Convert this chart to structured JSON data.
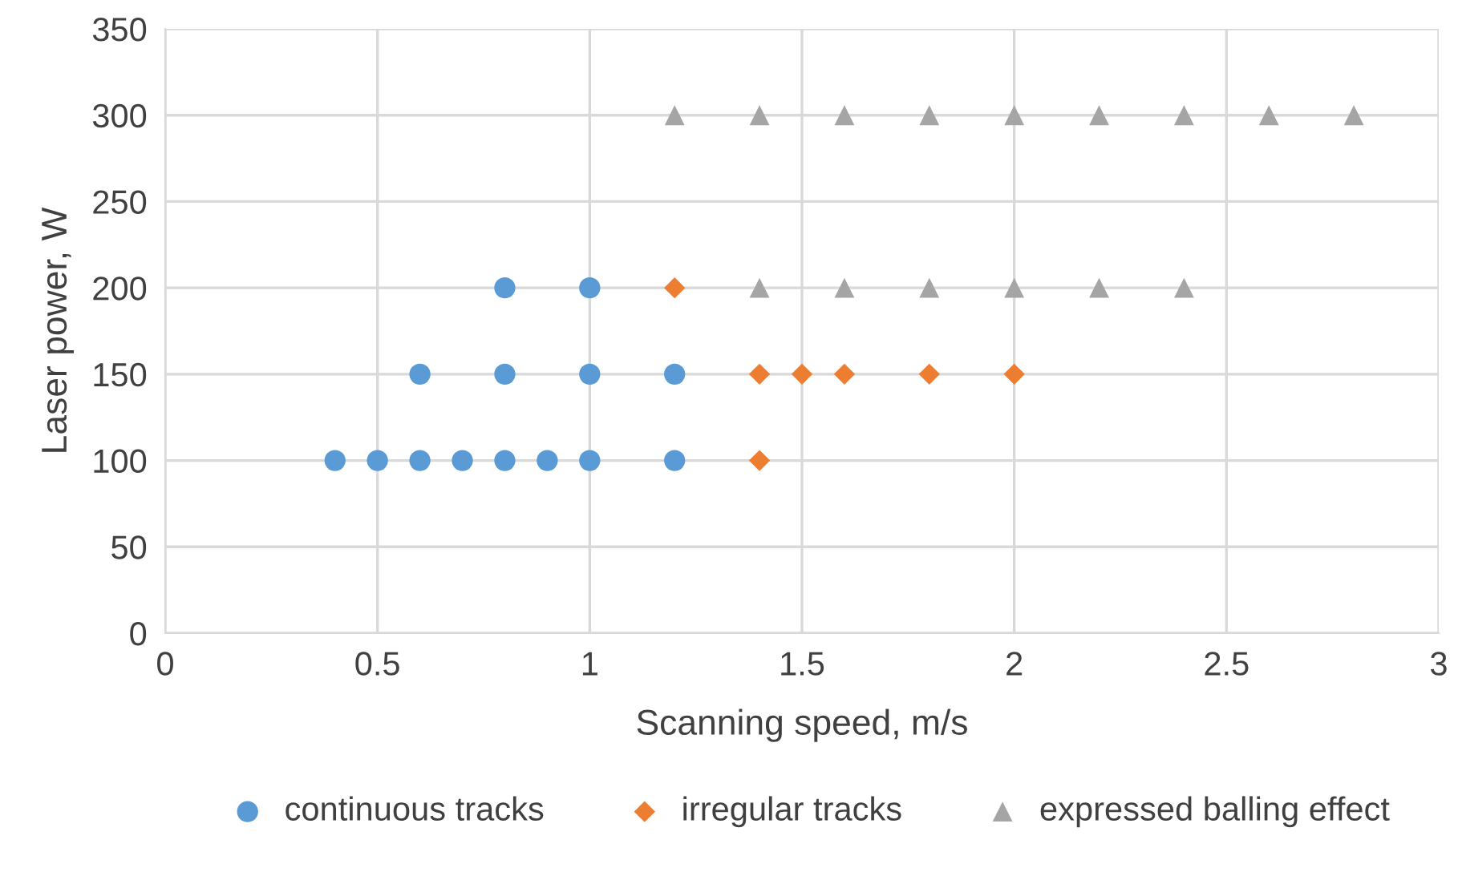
{
  "chart_data": {
    "type": "scatter",
    "xlabel": "Scanning speed, m/s",
    "ylabel": "Laser power, W",
    "xlim": [
      0,
      3
    ],
    "xticks": [
      0,
      0.5,
      1,
      1.5,
      2,
      2.5,
      3
    ],
    "ylim": [
      0,
      350
    ],
    "yticks": [
      0,
      50,
      100,
      150,
      200,
      250,
      300,
      350
    ],
    "grid": true,
    "legend": "bottom",
    "series": [
      {
        "name": "continuous tracks",
        "color": "#5b9bd5",
        "marker": "circle",
        "x": [
          0.4,
          0.5,
          0.6,
          0.7,
          0.8,
          0.9,
          1.0,
          1.2,
          0.6,
          0.8,
          1.0,
          1.2,
          0.8,
          1.0
        ],
        "values": [
          100,
          100,
          100,
          100,
          100,
          100,
          100,
          100,
          150,
          150,
          150,
          150,
          200,
          200
        ]
      },
      {
        "name": "irregular tracks",
        "color": "#ed7d31",
        "marker": "diamond",
        "x": [
          1.4,
          1.4,
          1.5,
          1.6,
          1.8,
          2.0,
          1.2
        ],
        "values": [
          100,
          150,
          150,
          150,
          150,
          150,
          200
        ]
      },
      {
        "name": "expressed balling effect",
        "color": "#a5a5a5",
        "marker": "triangle",
        "x": [
          1.4,
          1.6,
          1.8,
          2.0,
          2.2,
          2.4,
          1.2,
          1.4,
          1.6,
          1.8,
          2.0,
          2.2,
          2.4,
          2.6,
          2.8
        ],
        "values": [
          200,
          200,
          200,
          200,
          200,
          200,
          300,
          300,
          300,
          300,
          300,
          300,
          300,
          300,
          300
        ]
      }
    ]
  }
}
